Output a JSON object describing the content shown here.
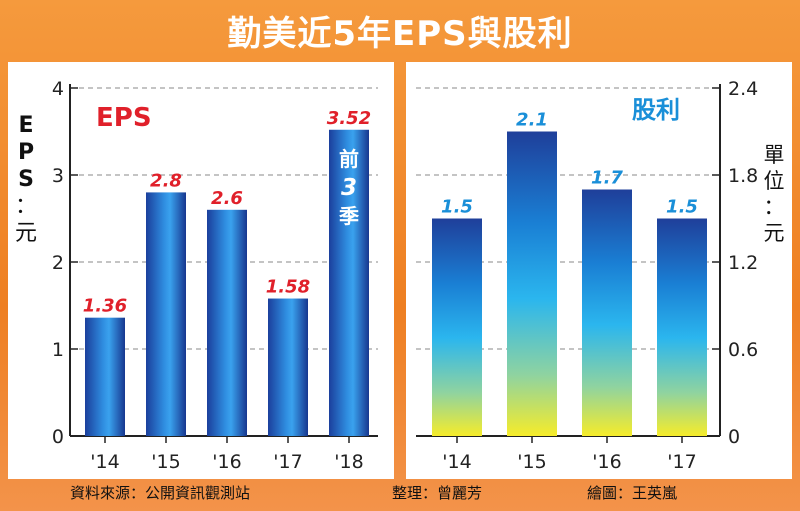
{
  "title": "勤美近5年EPS與股利",
  "footer": {
    "source": "資料來源：公開資訊觀測站",
    "editor": "整理：曾麗芳",
    "illustrator": "繪圖：王英嵐"
  },
  "colors": {
    "background": "#f08a2c",
    "label_red": "#e0202a",
    "label_blue": "#1a8fd8"
  },
  "chart_data": [
    {
      "type": "bar",
      "title": "EPS",
      "ylabel": "EPS：元",
      "categories": [
        "'14",
        "'15",
        "'16",
        "'17",
        "'18"
      ],
      "values": [
        1.36,
        2.8,
        2.6,
        1.58,
        3.52
      ],
      "value_labels": [
        "1.36",
        "2.8",
        "2.6",
        "1.58",
        "3.52"
      ],
      "bar_note": "前3季",
      "yticks": [
        "0",
        "1",
        "2",
        "3",
        "4"
      ],
      "ylim": [
        0,
        4
      ],
      "axis_side": "left",
      "grid": true
    },
    {
      "type": "bar",
      "title": "股利",
      "ylabel": "單位：元",
      "categories": [
        "'14",
        "'15",
        "'16",
        "'17"
      ],
      "values": [
        1.5,
        2.1,
        1.7,
        1.5
      ],
      "value_labels": [
        "1.5",
        "2.1",
        "1.7",
        "1.5"
      ],
      "yticks": [
        "0",
        "0.6",
        "1.2",
        "1.8",
        "2.4"
      ],
      "ylim": [
        0,
        2.4
      ],
      "axis_side": "right",
      "grid": true
    }
  ]
}
